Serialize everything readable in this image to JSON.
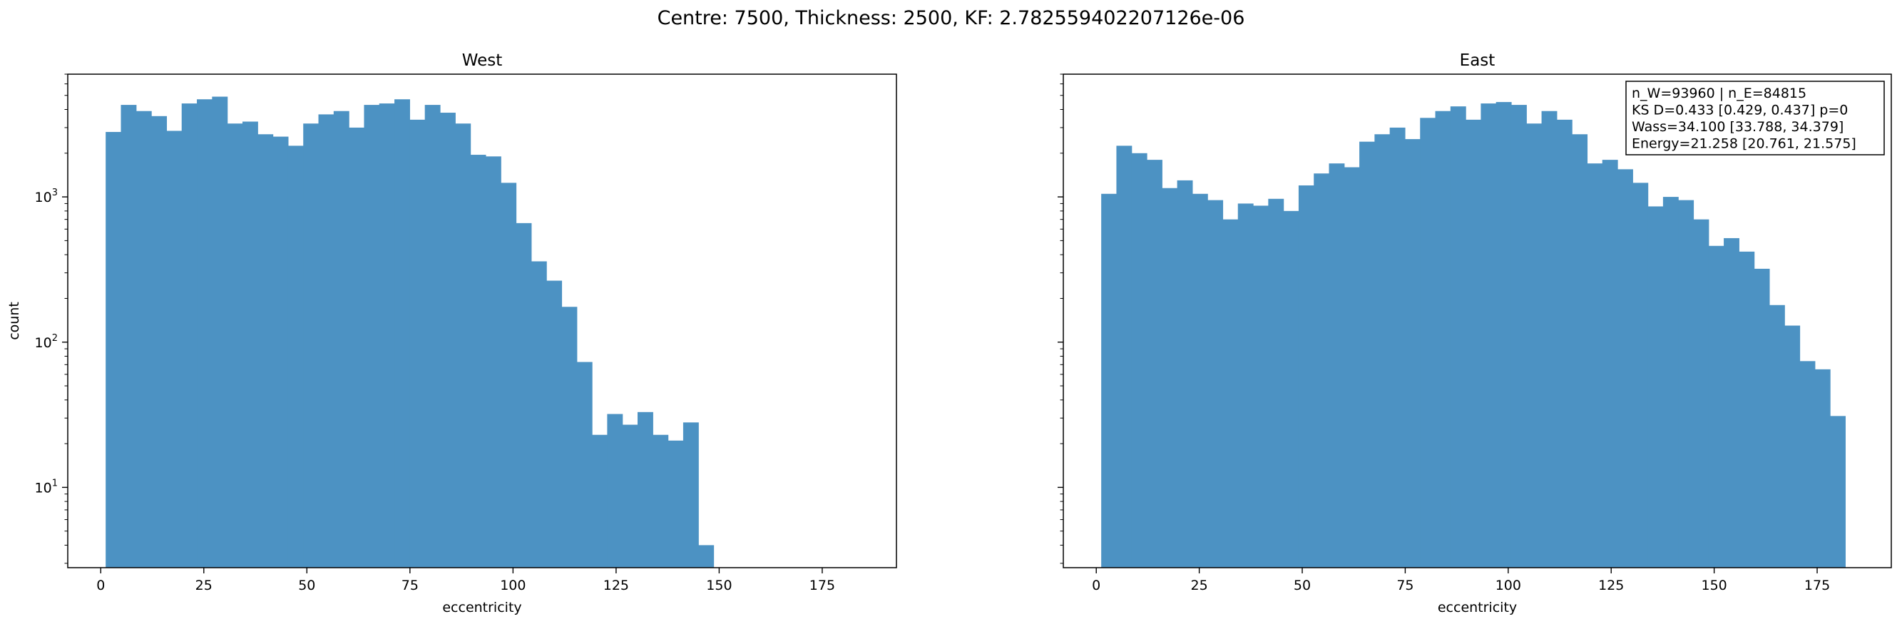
{
  "figure": {
    "suptitle": "Centre: 7500, Thickness: 2500, KF: 2.782559402207126e-06",
    "bar_color": "#4c92c3"
  },
  "chart_data": [
    {
      "type": "bar",
      "subtype": "histogram",
      "title": "West",
      "xlabel": "eccentricity",
      "ylabel": "count",
      "yscale": "log",
      "xlim": [
        -8,
        193
      ],
      "ylim": [
        2.8,
        7000
      ],
      "xticks": [
        0,
        25,
        50,
        75,
        100,
        125,
        150,
        175
      ],
      "yticks": [
        10,
        100,
        1000
      ],
      "ytick_labels": [
        "10¹",
        "10²",
        "10³"
      ],
      "bin_start": 1.2,
      "bin_width": 3.686,
      "values": [
        2800,
        4300,
        3900,
        3600,
        2850,
        4400,
        4700,
        4900,
        3200,
        3300,
        2700,
        2600,
        2250,
        3200,
        3700,
        3900,
        3000,
        4300,
        4400,
        4700,
        3400,
        4300,
        3800,
        3200,
        1950,
        1900,
        1250,
        660,
        360,
        265,
        175,
        73,
        23,
        32,
        27,
        33,
        23,
        21,
        28,
        4,
        0,
        0,
        0,
        0,
        0,
        0,
        0,
        0,
        0,
        0
      ]
    },
    {
      "type": "bar",
      "subtype": "histogram",
      "title": "East",
      "xlabel": "eccentricity",
      "ylabel": "",
      "yscale": "log",
      "xlim": [
        -8,
        193
      ],
      "ylim": [
        2.8,
        7000
      ],
      "xticks": [
        0,
        25,
        50,
        75,
        100,
        125,
        150,
        175
      ],
      "yticks": [
        10,
        100,
        1000
      ],
      "bin_start": 1.2,
      "bin_width": 3.686,
      "values": [
        1050,
        2250,
        2000,
        1800,
        1150,
        1300,
        1050,
        950,
        700,
        900,
        870,
        970,
        800,
        1200,
        1450,
        1700,
        1600,
        2400,
        2700,
        3000,
        2500,
        3500,
        3900,
        4200,
        3400,
        4400,
        4500,
        4300,
        3200,
        3900,
        3400,
        2700,
        1700,
        1800,
        1550,
        1250,
        860,
        1000,
        950,
        700,
        460,
        520,
        420,
        320,
        180,
        130,
        74,
        65,
        31
      ],
      "stats_box": [
        "n_W=93960 | n_E=84815",
        "KS D=0.433 [0.429, 0.437]  p=0",
        "Wass=34.100 [33.788, 34.379]",
        "Energy=21.258 [20.761, 21.575]"
      ]
    }
  ]
}
